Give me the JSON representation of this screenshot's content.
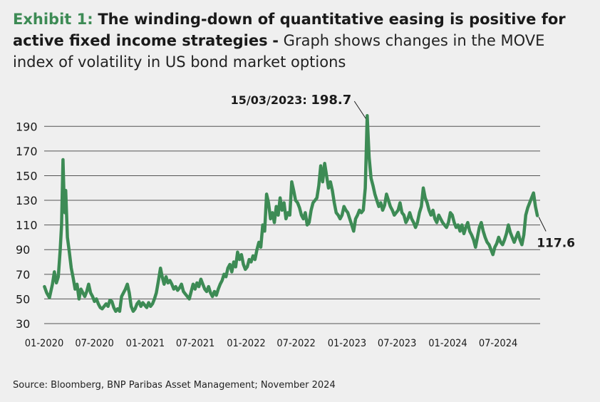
{
  "title": {
    "exhibit": "Exhibit 1:",
    "headline": "The winding-down of quantitative easing is positive for active fixed income strategies",
    "separator": "-",
    "subtitle": "Graph shows changes in the MOVE index of volatility in US bond market options"
  },
  "source": "Source: Bloomberg, BNP Paribas Asset Management; November 2024",
  "colors": {
    "line": "#3d8b55",
    "gridline": "#555555",
    "background": "#efefef"
  },
  "chart_data": {
    "type": "line",
    "title": "",
    "xlabel": "",
    "ylabel": "",
    "ylim": [
      30,
      200
    ],
    "yticks": [
      30,
      50,
      70,
      90,
      110,
      130,
      150,
      170,
      190
    ],
    "xlim": [
      "2020-01-01",
      "2024-11-30"
    ],
    "xticks": [
      {
        "date": "2020-01-01",
        "label": "01-2020"
      },
      {
        "date": "2020-07-01",
        "label": "07-2020"
      },
      {
        "date": "2021-01-01",
        "label": "01-2021"
      },
      {
        "date": "2021-07-01",
        "label": "07-2021"
      },
      {
        "date": "2022-01-01",
        "label": "01-2022"
      },
      {
        "date": "2022-07-01",
        "label": "07-2022"
      },
      {
        "date": "2023-01-01",
        "label": "01-2023"
      },
      {
        "date": "2023-07-01",
        "label": "07-2023"
      },
      {
        "date": "2024-01-01",
        "label": "01-2024"
      },
      {
        "date": "2024-07-01",
        "label": "07-2024"
      }
    ],
    "grid": "horizontal",
    "series": [
      {
        "points": [
          [
            "2020-01-02",
            60
          ],
          [
            "2020-01-10",
            55
          ],
          [
            "2020-01-20",
            51
          ],
          [
            "2020-01-31",
            62
          ],
          [
            "2020-02-07",
            72
          ],
          [
            "2020-02-14",
            63
          ],
          [
            "2020-02-21",
            68
          ],
          [
            "2020-02-28",
            90
          ],
          [
            "2020-03-04",
            110
          ],
          [
            "2020-03-09",
            163
          ],
          [
            "2020-03-12",
            140
          ],
          [
            "2020-03-16",
            120
          ],
          [
            "2020-03-19",
            138
          ],
          [
            "2020-03-25",
            100
          ],
          [
            "2020-04-01",
            88
          ],
          [
            "2020-04-08",
            75
          ],
          [
            "2020-04-15",
            67
          ],
          [
            "2020-04-22",
            58
          ],
          [
            "2020-04-29",
            62
          ],
          [
            "2020-05-06",
            50
          ],
          [
            "2020-05-13",
            58
          ],
          [
            "2020-05-20",
            55
          ],
          [
            "2020-05-27",
            52
          ],
          [
            "2020-06-03",
            56
          ],
          [
            "2020-06-10",
            62
          ],
          [
            "2020-06-17",
            55
          ],
          [
            "2020-06-24",
            52
          ],
          [
            "2020-07-01",
            48
          ],
          [
            "2020-07-08",
            50
          ],
          [
            "2020-07-15",
            46
          ],
          [
            "2020-07-22",
            43
          ],
          [
            "2020-07-29",
            42
          ],
          [
            "2020-08-05",
            44
          ],
          [
            "2020-08-12",
            46
          ],
          [
            "2020-08-19",
            44
          ],
          [
            "2020-08-26",
            49
          ],
          [
            "2020-09-02",
            48
          ],
          [
            "2020-09-09",
            43
          ],
          [
            "2020-09-16",
            40
          ],
          [
            "2020-09-23",
            42
          ],
          [
            "2020-09-30",
            40
          ],
          [
            "2020-10-07",
            52
          ],
          [
            "2020-10-14",
            55
          ],
          [
            "2020-10-21",
            58
          ],
          [
            "2020-10-28",
            62
          ],
          [
            "2020-11-04",
            55
          ],
          [
            "2020-11-11",
            44
          ],
          [
            "2020-11-18",
            40
          ],
          [
            "2020-11-25",
            42
          ],
          [
            "2020-12-02",
            46
          ],
          [
            "2020-12-09",
            48
          ],
          [
            "2020-12-16",
            44
          ],
          [
            "2020-12-23",
            47
          ],
          [
            "2020-12-30",
            45
          ],
          [
            "2021-01-06",
            43
          ],
          [
            "2021-01-13",
            47
          ],
          [
            "2021-01-20",
            44
          ],
          [
            "2021-01-27",
            46
          ],
          [
            "2021-02-03",
            50
          ],
          [
            "2021-02-10",
            55
          ],
          [
            "2021-02-17",
            64
          ],
          [
            "2021-02-25",
            75
          ],
          [
            "2021-03-03",
            68
          ],
          [
            "2021-03-10",
            62
          ],
          [
            "2021-03-17",
            68
          ],
          [
            "2021-03-24",
            63
          ],
          [
            "2021-03-31",
            65
          ],
          [
            "2021-04-07",
            62
          ],
          [
            "2021-04-14",
            58
          ],
          [
            "2021-04-21",
            60
          ],
          [
            "2021-04-28",
            57
          ],
          [
            "2021-05-05",
            59
          ],
          [
            "2021-05-12",
            62
          ],
          [
            "2021-05-19",
            56
          ],
          [
            "2021-05-26",
            54
          ],
          [
            "2021-06-02",
            52
          ],
          [
            "2021-06-09",
            50
          ],
          [
            "2021-06-16",
            56
          ],
          [
            "2021-06-23",
            62
          ],
          [
            "2021-06-30",
            58
          ],
          [
            "2021-07-07",
            63
          ],
          [
            "2021-07-14",
            60
          ],
          [
            "2021-07-21",
            66
          ],
          [
            "2021-07-28",
            62
          ],
          [
            "2021-08-04",
            58
          ],
          [
            "2021-08-11",
            56
          ],
          [
            "2021-08-18",
            60
          ],
          [
            "2021-08-25",
            55
          ],
          [
            "2021-09-01",
            52
          ],
          [
            "2021-09-08",
            56
          ],
          [
            "2021-09-15",
            53
          ],
          [
            "2021-09-22",
            58
          ],
          [
            "2021-09-29",
            62
          ],
          [
            "2021-10-06",
            65
          ],
          [
            "2021-10-13",
            70
          ],
          [
            "2021-10-20",
            68
          ],
          [
            "2021-10-27",
            75
          ],
          [
            "2021-11-03",
            78
          ],
          [
            "2021-11-10",
            72
          ],
          [
            "2021-11-17",
            80
          ],
          [
            "2021-11-24",
            76
          ],
          [
            "2021-12-01",
            88
          ],
          [
            "2021-12-08",
            82
          ],
          [
            "2021-12-15",
            86
          ],
          [
            "2021-12-22",
            78
          ],
          [
            "2021-12-29",
            74
          ],
          [
            "2022-01-05",
            76
          ],
          [
            "2022-01-12",
            82
          ],
          [
            "2022-01-19",
            80
          ],
          [
            "2022-01-26",
            85
          ],
          [
            "2022-02-02",
            82
          ],
          [
            "2022-02-09",
            90
          ],
          [
            "2022-02-16",
            96
          ],
          [
            "2022-02-23",
            92
          ],
          [
            "2022-03-02",
            110
          ],
          [
            "2022-03-09",
            105
          ],
          [
            "2022-03-16",
            135
          ],
          [
            "2022-03-23",
            128
          ],
          [
            "2022-03-30",
            115
          ],
          [
            "2022-04-06",
            120
          ],
          [
            "2022-04-13",
            112
          ],
          [
            "2022-04-20",
            125
          ],
          [
            "2022-04-27",
            118
          ],
          [
            "2022-05-04",
            132
          ],
          [
            "2022-05-11",
            122
          ],
          [
            "2022-05-18",
            128
          ],
          [
            "2022-05-25",
            115
          ],
          [
            "2022-06-01",
            120
          ],
          [
            "2022-06-08",
            118
          ],
          [
            "2022-06-15",
            145
          ],
          [
            "2022-06-22",
            138
          ],
          [
            "2022-06-29",
            130
          ],
          [
            "2022-07-06",
            128
          ],
          [
            "2022-07-13",
            124
          ],
          [
            "2022-07-20",
            118
          ],
          [
            "2022-07-27",
            115
          ],
          [
            "2022-08-03",
            120
          ],
          [
            "2022-08-10",
            110
          ],
          [
            "2022-08-17",
            112
          ],
          [
            "2022-08-24",
            122
          ],
          [
            "2022-08-31",
            128
          ],
          [
            "2022-09-07",
            130
          ],
          [
            "2022-09-14",
            132
          ],
          [
            "2022-09-21",
            142
          ],
          [
            "2022-09-28",
            158
          ],
          [
            "2022-10-05",
            145
          ],
          [
            "2022-10-12",
            160
          ],
          [
            "2022-10-19",
            150
          ],
          [
            "2022-10-26",
            140
          ],
          [
            "2022-11-02",
            145
          ],
          [
            "2022-11-09",
            138
          ],
          [
            "2022-11-16",
            128
          ],
          [
            "2022-11-23",
            120
          ],
          [
            "2022-11-30",
            118
          ],
          [
            "2022-12-07",
            115
          ],
          [
            "2022-12-14",
            118
          ],
          [
            "2022-12-21",
            125
          ],
          [
            "2022-12-28",
            122
          ],
          [
            "2023-01-04",
            120
          ],
          [
            "2023-01-11",
            115
          ],
          [
            "2023-01-18",
            110
          ],
          [
            "2023-01-25",
            105
          ],
          [
            "2023-02-01",
            115
          ],
          [
            "2023-02-08",
            118
          ],
          [
            "2023-02-15",
            122
          ],
          [
            "2023-02-22",
            120
          ],
          [
            "2023-03-01",
            122
          ],
          [
            "2023-03-08",
            140
          ],
          [
            "2023-03-15",
            198.7
          ],
          [
            "2023-03-22",
            165
          ],
          [
            "2023-03-29",
            148
          ],
          [
            "2023-04-05",
            142
          ],
          [
            "2023-04-12",
            135
          ],
          [
            "2023-04-19",
            130
          ],
          [
            "2023-04-26",
            125
          ],
          [
            "2023-05-03",
            128
          ],
          [
            "2023-05-10",
            122
          ],
          [
            "2023-05-17",
            126
          ],
          [
            "2023-05-24",
            135
          ],
          [
            "2023-05-31",
            130
          ],
          [
            "2023-06-07",
            125
          ],
          [
            "2023-06-14",
            122
          ],
          [
            "2023-06-21",
            118
          ],
          [
            "2023-06-28",
            120
          ],
          [
            "2023-07-05",
            122
          ],
          [
            "2023-07-12",
            128
          ],
          [
            "2023-07-19",
            120
          ],
          [
            "2023-07-26",
            118
          ],
          [
            "2023-08-02",
            112
          ],
          [
            "2023-08-09",
            115
          ],
          [
            "2023-08-16",
            120
          ],
          [
            "2023-08-23",
            115
          ],
          [
            "2023-08-30",
            112
          ],
          [
            "2023-09-06",
            108
          ],
          [
            "2023-09-13",
            112
          ],
          [
            "2023-09-20",
            120
          ],
          [
            "2023-09-27",
            125
          ],
          [
            "2023-10-04",
            140
          ],
          [
            "2023-10-11",
            132
          ],
          [
            "2023-10-18",
            128
          ],
          [
            "2023-10-25",
            122
          ],
          [
            "2023-11-01",
            118
          ],
          [
            "2023-11-08",
            122
          ],
          [
            "2023-11-15",
            115
          ],
          [
            "2023-11-22",
            112
          ],
          [
            "2023-11-29",
            118
          ],
          [
            "2023-12-06",
            115
          ],
          [
            "2023-12-13",
            112
          ],
          [
            "2023-12-20",
            110
          ],
          [
            "2023-12-27",
            108
          ],
          [
            "2024-01-03",
            112
          ],
          [
            "2024-01-10",
            120
          ],
          [
            "2024-01-17",
            118
          ],
          [
            "2024-01-24",
            112
          ],
          [
            "2024-01-31",
            108
          ],
          [
            "2024-02-07",
            110
          ],
          [
            "2024-02-14",
            105
          ],
          [
            "2024-02-21",
            110
          ],
          [
            "2024-02-28",
            103
          ],
          [
            "2024-03-06",
            108
          ],
          [
            "2024-03-13",
            112
          ],
          [
            "2024-03-20",
            105
          ],
          [
            "2024-03-27",
            102
          ],
          [
            "2024-04-03",
            98
          ],
          [
            "2024-04-10",
            92
          ],
          [
            "2024-04-17",
            100
          ],
          [
            "2024-04-24",
            108
          ],
          [
            "2024-05-01",
            112
          ],
          [
            "2024-05-08",
            105
          ],
          [
            "2024-05-15",
            100
          ],
          [
            "2024-05-22",
            96
          ],
          [
            "2024-05-29",
            94
          ],
          [
            "2024-06-05",
            90
          ],
          [
            "2024-06-12",
            86
          ],
          [
            "2024-06-19",
            92
          ],
          [
            "2024-06-26",
            95
          ],
          [
            "2024-07-03",
            100
          ],
          [
            "2024-07-10",
            96
          ],
          [
            "2024-07-17",
            94
          ],
          [
            "2024-07-24",
            98
          ],
          [
            "2024-07-31",
            103
          ],
          [
            "2024-08-07",
            110
          ],
          [
            "2024-08-14",
            104
          ],
          [
            "2024-08-21",
            100
          ],
          [
            "2024-08-28",
            96
          ],
          [
            "2024-09-04",
            100
          ],
          [
            "2024-09-11",
            104
          ],
          [
            "2024-09-18",
            98
          ],
          [
            "2024-09-25",
            94
          ],
          [
            "2024-10-02",
            102
          ],
          [
            "2024-10-09",
            118
          ],
          [
            "2024-10-16",
            124
          ],
          [
            "2024-10-23",
            128
          ],
          [
            "2024-10-30",
            132
          ],
          [
            "2024-11-06",
            136
          ],
          [
            "2024-11-13",
            125
          ],
          [
            "2024-11-20",
            117.6
          ]
        ]
      }
    ],
    "annotations": [
      {
        "date_label": "15/03/2023:",
        "value_label": "198.7",
        "x": "2023-03-15",
        "y": 198.7
      },
      {
        "value_label": "117.6",
        "x": "2024-11-20",
        "y": 117.6
      }
    ]
  }
}
